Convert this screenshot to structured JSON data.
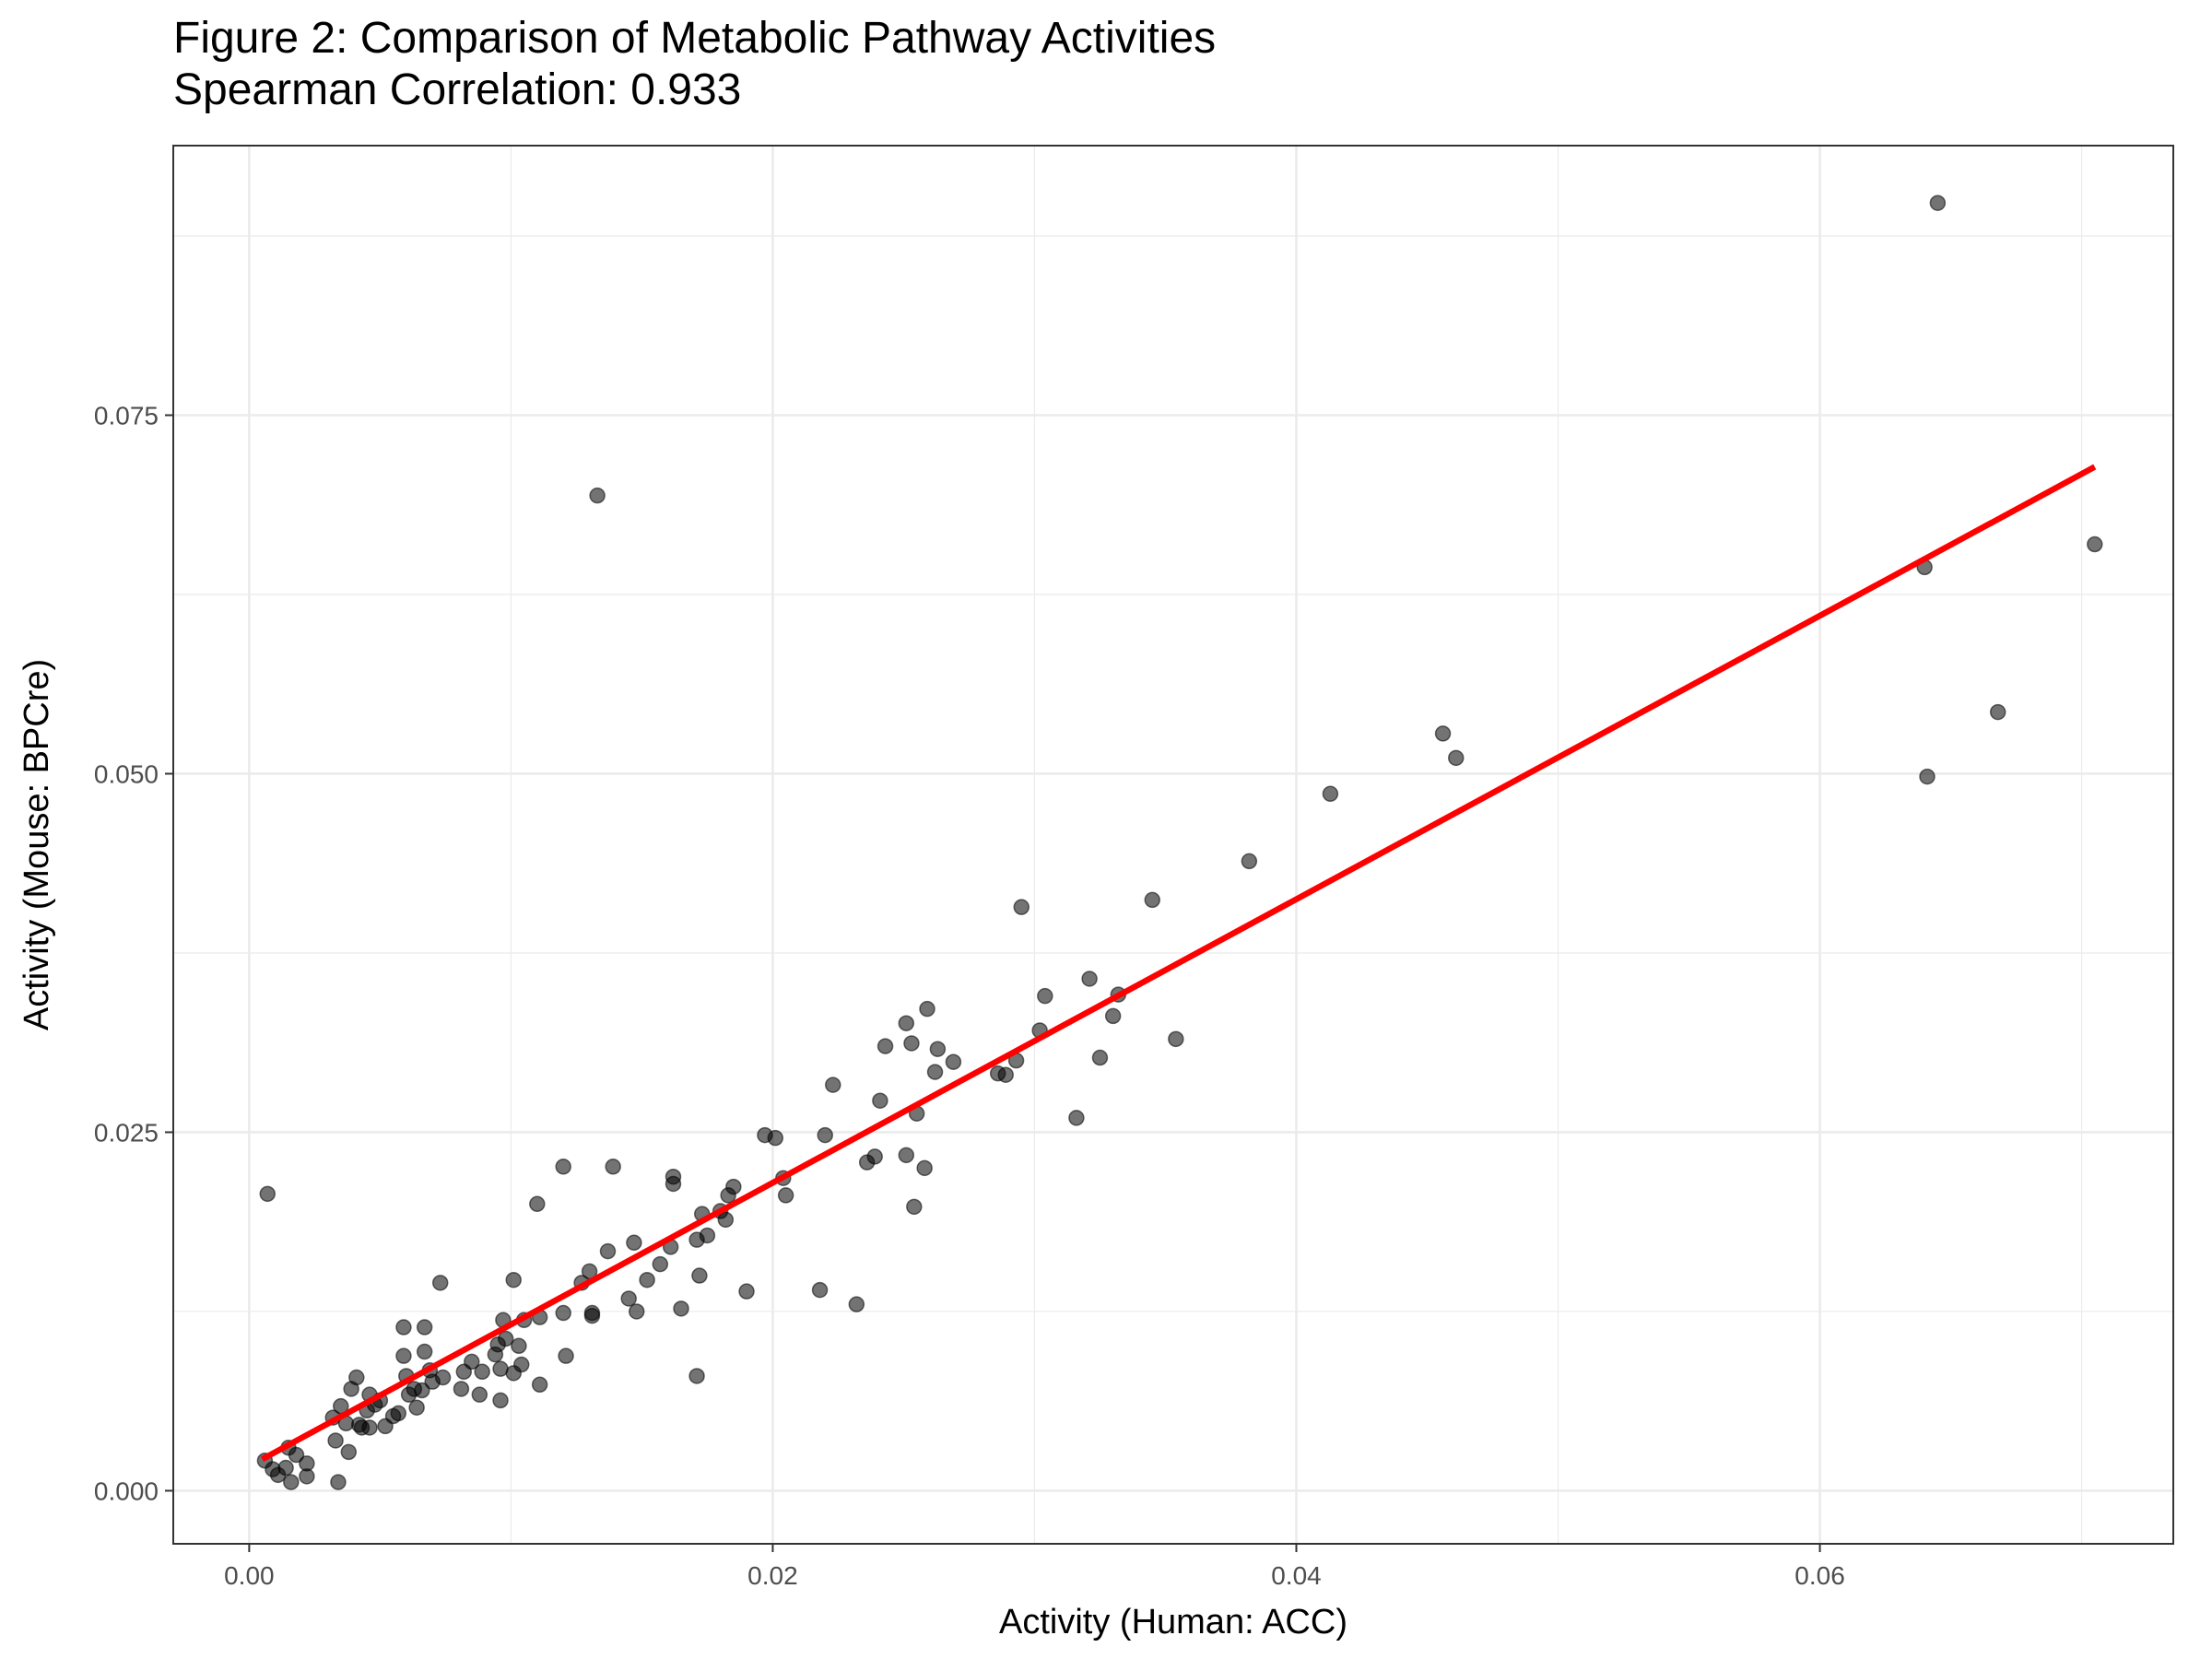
{
  "chart_data": {
    "type": "scatter",
    "title": "Figure 2: Comparison of Metabolic Pathway Activities",
    "subtitle": "Spearman Correlation: 0.933",
    "xlabel": "Activity (Human: ACC)",
    "ylabel": "Activity (Mouse: BPCre)",
    "xlim": [
      -0.0029,
      0.0735
    ],
    "ylim": [
      -0.0037,
      0.0938
    ],
    "x_ticks": [
      0,
      0.02,
      0.04,
      0.06
    ],
    "x_tick_labels": [
      "0.00",
      "0.02",
      "0.04",
      "0.06"
    ],
    "y_ticks": [
      0,
      0.025,
      0.05,
      0.075
    ],
    "y_tick_labels": [
      "0.000",
      "0.025",
      "0.050",
      "0.075"
    ],
    "grid": true,
    "colors": {
      "points": "#000000",
      "fit_line": "#ff0000",
      "grid": "#ebebeb",
      "panel_border": "#333333"
    },
    "fit_line": {
      "x": [
        0.0005,
        0.0705
      ],
      "y": [
        0.0022,
        0.0714
      ]
    },
    "points": [
      [
        0.0007,
        0.0207
      ],
      [
        0.0006,
        0.0021
      ],
      [
        0.0009,
        0.0015
      ],
      [
        0.0011,
        0.0011
      ],
      [
        0.0014,
        0.0016
      ],
      [
        0.0015,
        0.003
      ],
      [
        0.0016,
        0.0006
      ],
      [
        0.0018,
        0.0025
      ],
      [
        0.0022,
        0.001
      ],
      [
        0.0022,
        0.0019
      ],
      [
        0.0032,
        0.0051
      ],
      [
        0.0033,
        0.0035
      ],
      [
        0.0034,
        0.0006
      ],
      [
        0.0035,
        0.0059
      ],
      [
        0.0037,
        0.0047
      ],
      [
        0.0038,
        0.0027
      ],
      [
        0.0039,
        0.0071
      ],
      [
        0.0041,
        0.0079
      ],
      [
        0.0042,
        0.0046
      ],
      [
        0.0043,
        0.0044
      ],
      [
        0.0045,
        0.0056
      ],
      [
        0.0046,
        0.0067
      ],
      [
        0.0046,
        0.0044
      ],
      [
        0.0048,
        0.006
      ],
      [
        0.005,
        0.0063
      ],
      [
        0.0052,
        0.0045
      ],
      [
        0.0055,
        0.0052
      ],
      [
        0.0057,
        0.0054
      ],
      [
        0.0059,
        0.0114
      ],
      [
        0.0059,
        0.0094
      ],
      [
        0.006,
        0.008
      ],
      [
        0.0061,
        0.0067
      ],
      [
        0.0063,
        0.0071
      ],
      [
        0.0064,
        0.0058
      ],
      [
        0.0066,
        0.007
      ],
      [
        0.0067,
        0.0114
      ],
      [
        0.0067,
        0.0097
      ],
      [
        0.0069,
        0.0084
      ],
      [
        0.007,
        0.0076
      ],
      [
        0.0073,
        0.0145
      ],
      [
        0.0074,
        0.0079
      ],
      [
        0.0081,
        0.0071
      ],
      [
        0.0082,
        0.0083
      ],
      [
        0.0085,
        0.009
      ],
      [
        0.0088,
        0.0067
      ],
      [
        0.0089,
        0.0083
      ],
      [
        0.0094,
        0.0095
      ],
      [
        0.0095,
        0.0102
      ],
      [
        0.0096,
        0.0085
      ],
      [
        0.0096,
        0.0063
      ],
      [
        0.0097,
        0.0119
      ],
      [
        0.0098,
        0.0106
      ],
      [
        0.0101,
        0.0147
      ],
      [
        0.0101,
        0.0082
      ],
      [
        0.0103,
        0.0101
      ],
      [
        0.0104,
        0.0088
      ],
      [
        0.0105,
        0.0119
      ],
      [
        0.011,
        0.02
      ],
      [
        0.0111,
        0.0121
      ],
      [
        0.0111,
        0.0074
      ],
      [
        0.012,
        0.0226
      ],
      [
        0.012,
        0.0124
      ],
      [
        0.0121,
        0.0094
      ],
      [
        0.0127,
        0.0145
      ],
      [
        0.013,
        0.0153
      ],
      [
        0.0131,
        0.0122
      ],
      [
        0.0131,
        0.0124
      ],
      [
        0.0133,
        0.0694
      ],
      [
        0.0137,
        0.0167
      ],
      [
        0.0139,
        0.0226
      ],
      [
        0.0145,
        0.0134
      ],
      [
        0.0147,
        0.0173
      ],
      [
        0.0148,
        0.0125
      ],
      [
        0.0152,
        0.0147
      ],
      [
        0.0157,
        0.0158
      ],
      [
        0.0161,
        0.017
      ],
      [
        0.0162,
        0.0214
      ],
      [
        0.0162,
        0.0219
      ],
      [
        0.0165,
        0.0127
      ],
      [
        0.0171,
        0.0175
      ],
      [
        0.0171,
        0.008
      ],
      [
        0.0172,
        0.015
      ],
      [
        0.0173,
        0.0193
      ],
      [
        0.0175,
        0.0178
      ],
      [
        0.018,
        0.0195
      ],
      [
        0.0182,
        0.0189
      ],
      [
        0.0183,
        0.0206
      ],
      [
        0.0185,
        0.0212
      ],
      [
        0.019,
        0.0139
      ],
      [
        0.0197,
        0.0248
      ],
      [
        0.0201,
        0.0246
      ],
      [
        0.0204,
        0.0218
      ],
      [
        0.0205,
        0.0206
      ],
      [
        0.0218,
        0.014
      ],
      [
        0.022,
        0.0248
      ],
      [
        0.0223,
        0.0283
      ],
      [
        0.0232,
        0.013
      ],
      [
        0.0236,
        0.0229
      ],
      [
        0.0239,
        0.0233
      ],
      [
        0.0241,
        0.0272
      ],
      [
        0.0243,
        0.031
      ],
      [
        0.0251,
        0.0326
      ],
      [
        0.0251,
        0.0234
      ],
      [
        0.0253,
        0.0312
      ],
      [
        0.0254,
        0.0198
      ],
      [
        0.0255,
        0.0263
      ],
      [
        0.0258,
        0.0225
      ],
      [
        0.0259,
        0.0336
      ],
      [
        0.0262,
        0.0292
      ],
      [
        0.0263,
        0.0308
      ],
      [
        0.0269,
        0.0299
      ],
      [
        0.0286,
        0.0291
      ],
      [
        0.0289,
        0.029
      ],
      [
        0.0293,
        0.03
      ],
      [
        0.0295,
        0.0407
      ],
      [
        0.0302,
        0.0321
      ],
      [
        0.0304,
        0.0345
      ],
      [
        0.0316,
        0.026
      ],
      [
        0.0321,
        0.0357
      ],
      [
        0.0325,
        0.0302
      ],
      [
        0.033,
        0.0331
      ],
      [
        0.0332,
        0.0346
      ],
      [
        0.0345,
        0.0412
      ],
      [
        0.0354,
        0.0315
      ],
      [
        0.0382,
        0.0439
      ],
      [
        0.0413,
        0.0486
      ],
      [
        0.0456,
        0.0528
      ],
      [
        0.0461,
        0.0511
      ],
      [
        0.064,
        0.0644
      ],
      [
        0.0641,
        0.0498
      ],
      [
        0.0645,
        0.0898
      ],
      [
        0.0668,
        0.0543
      ],
      [
        0.0705,
        0.066
      ]
    ]
  }
}
